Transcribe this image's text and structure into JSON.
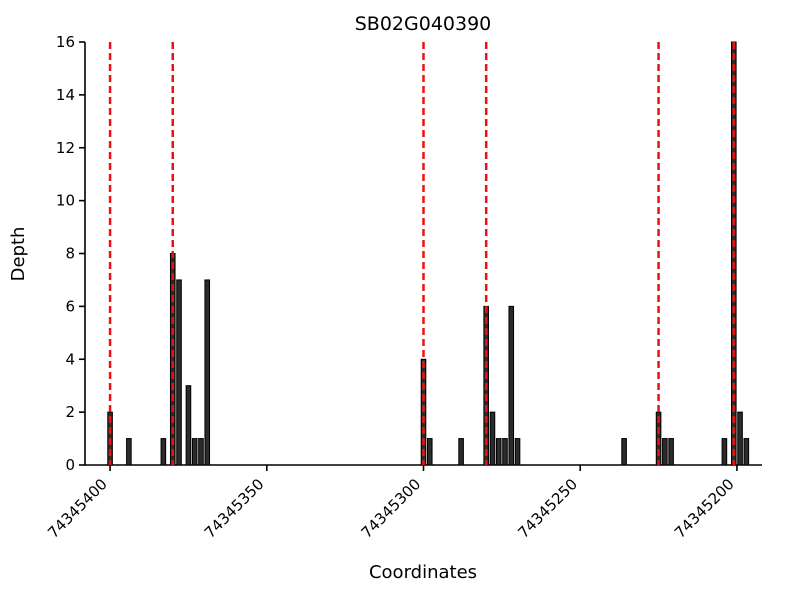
{
  "chart_data": {
    "type": "bar",
    "title": "SB02G040390",
    "xlabel": "Coordinates",
    "ylabel": "Depth",
    "x_axis": {
      "reversed": true,
      "left_value": 74345408,
      "right_value": 74345192,
      "ticks": [
        74345400,
        74345350,
        74345300,
        74345250,
        74345200
      ],
      "tick_labels": [
        "74345400",
        "74345350",
        "74345300",
        "74345250",
        "74345200"
      ]
    },
    "y_axis": {
      "min": 0,
      "max": 16,
      "ticks": [
        0,
        2,
        4,
        6,
        8,
        10,
        12,
        14,
        16
      ],
      "tick_labels": [
        "0",
        "2",
        "4",
        "6",
        "8",
        "10",
        "12",
        "14",
        "16"
      ]
    },
    "bars": [
      {
        "coordinate": 74345400,
        "depth": 2
      },
      {
        "coordinate": 74345394,
        "depth": 1
      },
      {
        "coordinate": 74345383,
        "depth": 1
      },
      {
        "coordinate": 74345380,
        "depth": 8
      },
      {
        "coordinate": 74345378,
        "depth": 7
      },
      {
        "coordinate": 74345375,
        "depth": 3
      },
      {
        "coordinate": 74345373,
        "depth": 1
      },
      {
        "coordinate": 74345371,
        "depth": 1
      },
      {
        "coordinate": 74345369,
        "depth": 7
      },
      {
        "coordinate": 74345300,
        "depth": 4
      },
      {
        "coordinate": 74345298,
        "depth": 1
      },
      {
        "coordinate": 74345288,
        "depth": 1
      },
      {
        "coordinate": 74345280,
        "depth": 6
      },
      {
        "coordinate": 74345278,
        "depth": 2
      },
      {
        "coordinate": 74345276,
        "depth": 1
      },
      {
        "coordinate": 74345274,
        "depth": 1
      },
      {
        "coordinate": 74345272,
        "depth": 6
      },
      {
        "coordinate": 74345270,
        "depth": 1
      },
      {
        "coordinate": 74345236,
        "depth": 1
      },
      {
        "coordinate": 74345225,
        "depth": 2
      },
      {
        "coordinate": 74345223,
        "depth": 1
      },
      {
        "coordinate": 74345221,
        "depth": 1
      },
      {
        "coordinate": 74345204,
        "depth": 1
      },
      {
        "coordinate": 74345201,
        "depth": 16
      },
      {
        "coordinate": 74345199,
        "depth": 2
      },
      {
        "coordinate": 74345197,
        "depth": 1
      }
    ],
    "vlines": {
      "positions": [
        74345400,
        74345380,
        74345300,
        74345280,
        74345225,
        74345201
      ],
      "style": "dashed",
      "color": "#ee1111"
    },
    "bar_color": "#2b2b2b",
    "bar_edge_color": "#000000",
    "axis_color": "#000000",
    "legend": "none",
    "grid": false
  }
}
